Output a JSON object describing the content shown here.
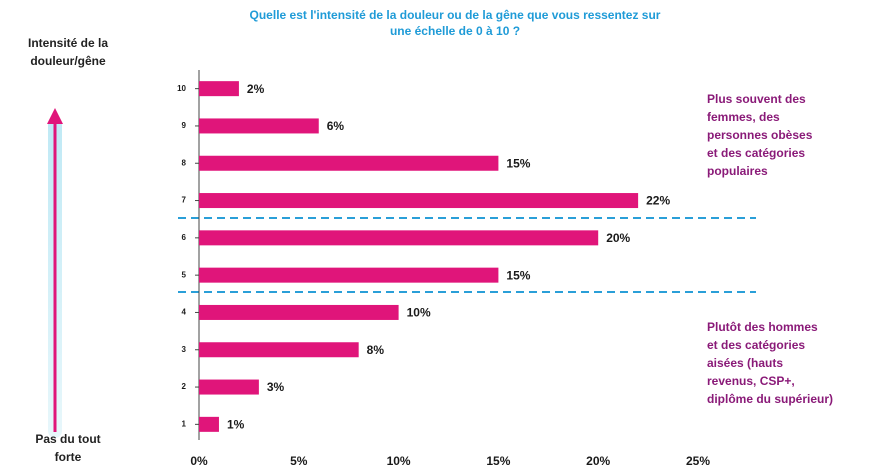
{
  "chart_data": {
    "type": "barh",
    "title_lines": [
      "Quelle est l'intensité de la douleur ou de la gêne que vous ressentez sur",
      "une échelle de 0 à 10 ?"
    ],
    "axis_top_lines": [
      "Intensité de la",
      "douleur/gêne"
    ],
    "axis_bottom_lines": [
      "Pas du tout",
      "forte"
    ],
    "annotations": [
      {
        "lines": [
          "Plus souvent des",
          "femmes, des",
          "personnes obèses",
          "et des catégories",
          "populaires"
        ]
      },
      {
        "lines": [
          "Plutôt des  hommes",
          "et des catégories",
          "aisées (hauts",
          "revenus, CSP+,",
          "diplôme du supérieur)"
        ]
      }
    ],
    "categories": [
      "10",
      "9",
      "8",
      "7",
      "6",
      "5",
      "4",
      "3",
      "2",
      "1"
    ],
    "values": [
      2,
      6,
      15,
      22,
      20,
      15,
      10,
      8,
      3,
      1
    ],
    "value_labels": [
      "2%",
      "6%",
      "15%",
      "22%",
      "20%",
      "15%",
      "10%",
      "8%",
      "3%",
      "1%"
    ],
    "color": "#e0157a",
    "xlim": [
      0,
      25
    ],
    "xticks": [
      {
        "value": 0,
        "label": "0%"
      },
      {
        "value": 5,
        "label": "5%"
      },
      {
        "value": 10,
        "label": "10%"
      },
      {
        "value": 15,
        "label": "15%"
      },
      {
        "value": 20,
        "label": "20%"
      },
      {
        "value": 25,
        "label": "25%"
      }
    ],
    "grid": false
  }
}
